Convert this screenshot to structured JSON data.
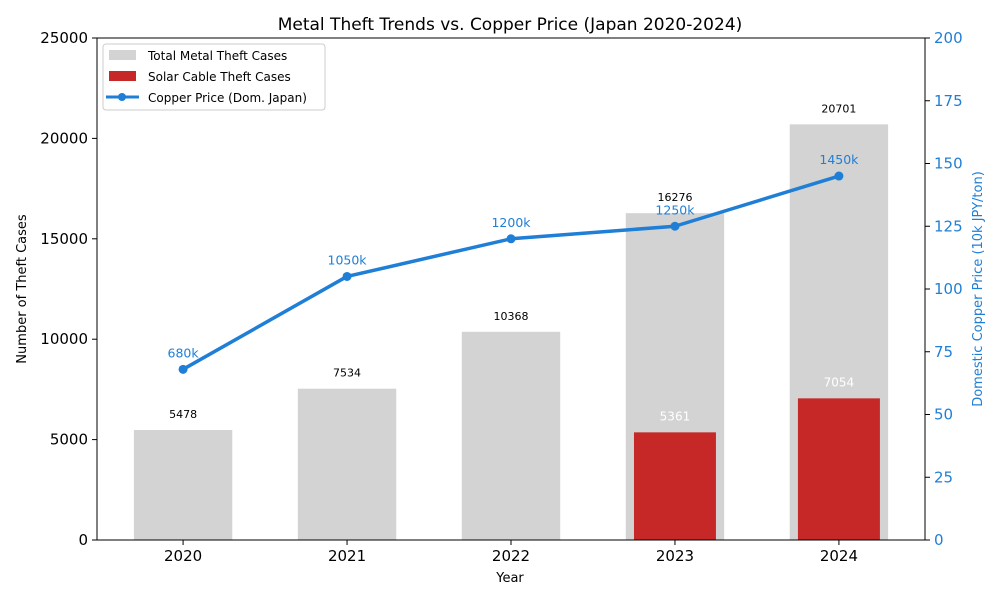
{
  "chart_data": {
    "type": "bar",
    "title": "Metal Theft Trends vs. Copper Price (Japan 2020-2024)",
    "xlabel": "Year",
    "ylabel": "Number of Theft Cases",
    "y2label": "Domestic Copper Price (10k JPY/ton)",
    "categories": [
      "2020",
      "2021",
      "2022",
      "2023",
      "2024"
    ],
    "ylim": [
      0,
      25000
    ],
    "y2lim": [
      0,
      200
    ],
    "yticks": [
      0,
      5000,
      10000,
      15000,
      20000,
      25000
    ],
    "y2ticks": [
      0,
      25,
      50,
      75,
      100,
      125,
      150,
      175,
      200
    ],
    "grid": false,
    "legend_position": "top-left",
    "series": [
      {
        "name": "Total Metal Theft Cases",
        "type": "bar",
        "axis": "left",
        "color": "#d3d3d3",
        "values": [
          5478,
          7534,
          10368,
          16276,
          20701
        ],
        "labels": [
          "5478",
          "7534",
          "10368",
          "16276",
          "20701"
        ]
      },
      {
        "name": "Solar Cable Theft Cases",
        "type": "bar",
        "axis": "left",
        "color": "#c62828",
        "values": [
          null,
          null,
          null,
          5361,
          7054
        ],
        "labels": [
          null,
          null,
          null,
          "5361",
          "7054"
        ]
      },
      {
        "name": "Copper Price (Dom. Japan)",
        "type": "line",
        "axis": "right",
        "color": "#1f7fd6",
        "values": [
          68,
          105,
          120,
          125,
          145
        ],
        "labels": [
          "680k",
          "1050k",
          "1200k",
          "1250k",
          "1450k"
        ]
      }
    ]
  }
}
